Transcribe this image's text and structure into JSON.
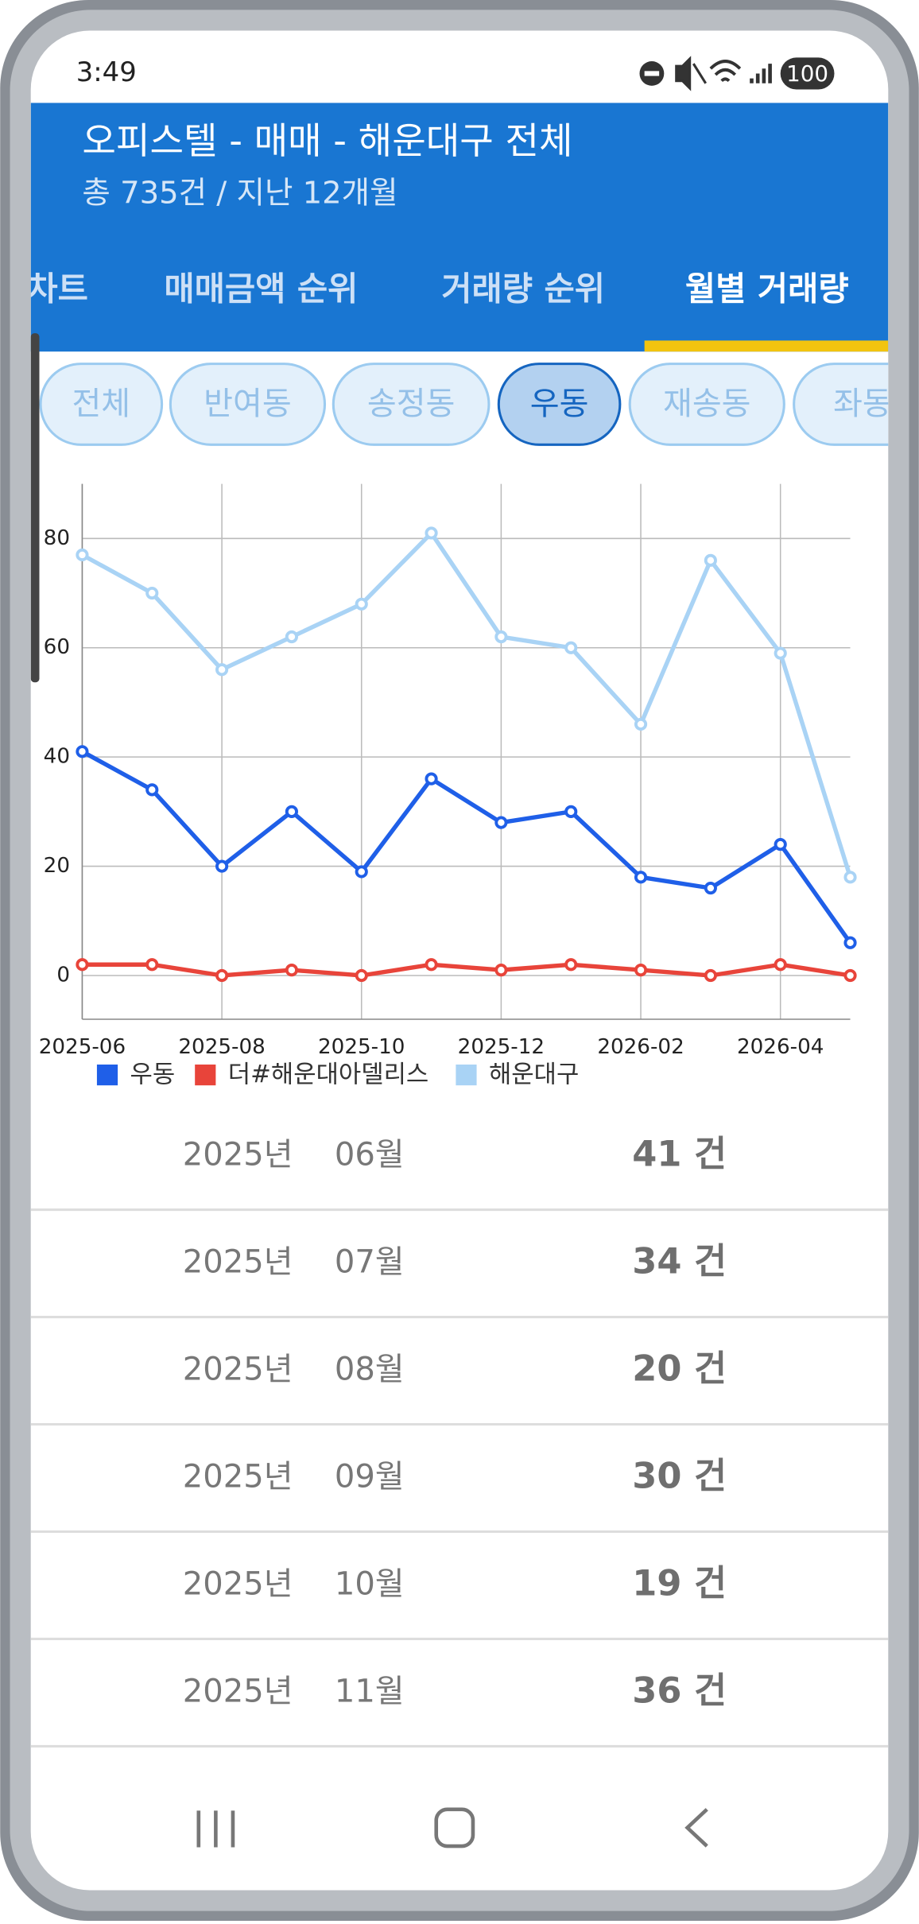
{
  "status_bar": {
    "time": "3:49",
    "battery": "100"
  },
  "header": {
    "title": "오피스텔 - 매매 - 해운대구 전체",
    "subtitle": "총 735건 / 지난 12개월"
  },
  "tabs": [
    "차트",
    "매매금액 순위",
    "거래량 순위",
    "월별 거래량"
  ],
  "filters": [
    "전체",
    "반여동",
    "송정동",
    "우동",
    "재송동",
    "좌동"
  ],
  "chart_data": {
    "type": "line",
    "categories": [
      "2025-06",
      null,
      "2025-08",
      null,
      "2025-10",
      null,
      "2025-12",
      null,
      "2026-02",
      null,
      "2026-04",
      null
    ],
    "series": [
      {
        "name": "우동",
        "color": "#1f5fe8",
        "values": [
          41,
          34,
          20,
          30,
          19,
          36,
          28,
          30,
          18,
          16,
          24,
          6
        ]
      },
      {
        "name": "더#해운대아델리스",
        "color": "#e8443a",
        "values": [
          2,
          2,
          0,
          1,
          0,
          2,
          1,
          2,
          1,
          0,
          2,
          0
        ]
      },
      {
        "name": "해운대구",
        "color": "#a9d3f5",
        "values": [
          77,
          70,
          56,
          62,
          68,
          81,
          62,
          60,
          46,
          76,
          59,
          18
        ]
      }
    ],
    "ylim": [
      -8,
      90
    ],
    "yticks": [
      0,
      20,
      40,
      60,
      80
    ],
    "grid": true
  },
  "rows": [
    {
      "year": "2025년",
      "month": "06월",
      "count": "41 건"
    },
    {
      "year": "2025년",
      "month": "07월",
      "count": "34 건"
    },
    {
      "year": "2025년",
      "month": "08월",
      "count": "20 건"
    },
    {
      "year": "2025년",
      "month": "09월",
      "count": "30 건"
    },
    {
      "year": "2025년",
      "month": "10월",
      "count": "19 건"
    },
    {
      "year": "2025년",
      "month": "11월",
      "count": "36 건"
    }
  ]
}
